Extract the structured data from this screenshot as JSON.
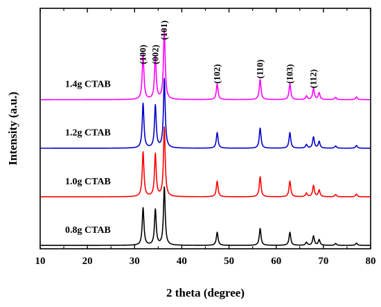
{
  "chart_data": {
    "type": "line",
    "xlabel": "2 theta (degree)",
    "ylabel": "Intensity (a.u.)",
    "xlim": [
      10,
      80
    ],
    "xticks": [
      10,
      20,
      30,
      40,
      50,
      60,
      70,
      80
    ],
    "grid": false,
    "legend": "none",
    "peaks": [
      {
        "pos": 31.8,
        "h": 1.0
      },
      {
        "pos": 34.4,
        "h": 0.95
      },
      {
        "pos": 36.3,
        "h": 1.55
      },
      {
        "pos": 47.5,
        "h": 0.35
      },
      {
        "pos": 56.6,
        "h": 0.45
      },
      {
        "pos": 62.9,
        "h": 0.35
      },
      {
        "pos": 66.4,
        "h": 0.08
      },
      {
        "pos": 67.9,
        "h": 0.25
      },
      {
        "pos": 69.1,
        "h": 0.15
      },
      {
        "pos": 72.6,
        "h": 0.05
      },
      {
        "pos": 77.0,
        "h": 0.06
      }
    ],
    "series": [
      {
        "name": "0.8g CTAB",
        "color": "#000000",
        "baseline": 0.0,
        "scale": 0.77
      },
      {
        "name": "1.0g CTAB",
        "color": "#ff0000",
        "baseline": 1.0,
        "scale": 0.92
      },
      {
        "name": "1.2g CTAB",
        "color": "#0000cc",
        "baseline": 2.0,
        "scale": 0.92
      },
      {
        "name": "1.4g CTAB",
        "color": "#ff00ff",
        "baseline": 3.0,
        "scale": 0.92
      }
    ],
    "annotations": [
      {
        "text": "(100)",
        "x": 31.8,
        "y": 3.95
      },
      {
        "text": "(002)",
        "x": 34.4,
        "y": 3.95
      },
      {
        "text": "(101)",
        "x": 36.3,
        "y": 4.45
      },
      {
        "text": "(102)",
        "x": 47.5,
        "y": 3.55
      },
      {
        "text": "(110)",
        "x": 56.6,
        "y": 3.65
      },
      {
        "text": "(103)",
        "x": 62.9,
        "y": 3.55
      },
      {
        "text": "(112)",
        "x": 67.9,
        "y": 3.45
      }
    ]
  }
}
